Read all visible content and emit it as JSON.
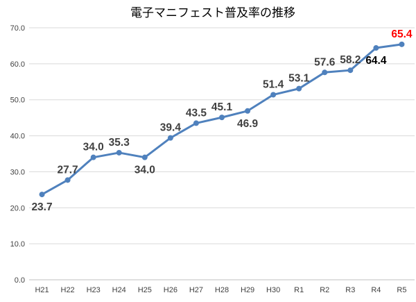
{
  "chart_data": {
    "type": "line",
    "title": "電子マニフェスト普及率の推移",
    "categories": [
      "H21",
      "H22",
      "H23",
      "H24",
      "H25",
      "H26",
      "H27",
      "H28",
      "H29",
      "H30",
      "R1",
      "R2",
      "R3",
      "R4",
      "R5"
    ],
    "series": [
      {
        "values": [
          23.7,
          27.7,
          34.0,
          35.3,
          34.0,
          39.4,
          43.5,
          45.1,
          46.9,
          51.4,
          53.1,
          57.6,
          58.2,
          64.4,
          65.4
        ]
      }
    ],
    "ylim": [
      0,
      70
    ],
    "yticks": [
      "0.0",
      "10.0",
      "20.0",
      "30.0",
      "40.0",
      "50.0",
      "60.0",
      "70.0"
    ],
    "data_labels": [
      "23.7",
      "27.7",
      "34.0",
      "35.3",
      "34.0",
      "39.4",
      "43.5",
      "45.1",
      "46.9",
      "51.4",
      "53.1",
      "57.6",
      "58.2",
      "64.4",
      "65.4"
    ],
    "xlabel": "",
    "ylabel": "",
    "grid": true,
    "legend": "none",
    "colors": {
      "line": "#4f81bd",
      "label": "#404040",
      "highlight_label": "#ff0000",
      "emphasis_label": "#000000"
    }
  }
}
